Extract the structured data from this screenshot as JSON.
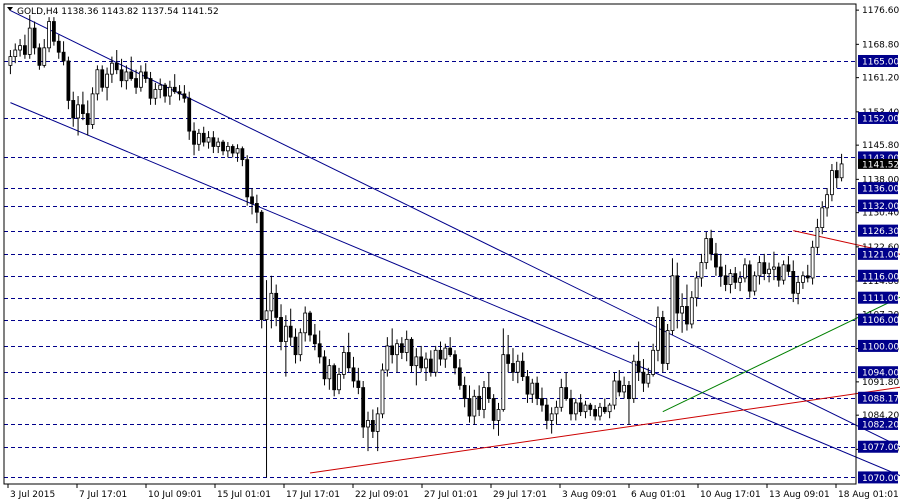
{
  "chart_data": {
    "type": "candlestick",
    "symbol": "GOLD,H4",
    "ohlc_header": {
      "open": "1138.36",
      "high": "1143.82",
      "low": "1137.54",
      "close": "1141.52"
    },
    "title": "GOLD,H4  1138.36 1143.82 1137.54 1141.52",
    "current_price_label": "1141.52",
    "ylim": [
      1068.5,
      1178
    ],
    "y_ticks": [
      "1176.60",
      "1168.80",
      "1161.20",
      "1153.40",
      "1145.80",
      "1138.00",
      "1130.40",
      "1122.60",
      "1114.80",
      "1107.20",
      "1099.40",
      "1091.80",
      "1084.20",
      "1076.40"
    ],
    "x_labels": [
      "3 Jul 2015",
      "7 Jul 17:01",
      "10 Jul 09:01",
      "15 Jul 01:01",
      "17 Jul 17:01",
      "22 Jul 09:01",
      "27 Jul 01:01",
      "29 Jul 17:01",
      "3 Aug 09:01",
      "6 Aug 01:01",
      "10 Aug 17:01",
      "13 Aug 09:01",
      "18 Aug 01:01"
    ],
    "horizontal_levels": [
      "1165.00",
      "1152.00",
      "1143.00",
      "1136.00",
      "1132.00",
      "1126.30",
      "1121.00",
      "1116.00",
      "1111.00",
      "1106.00",
      "1100.00",
      "1094.00",
      "1088.17",
      "1082.20",
      "1077.00",
      "1070.00"
    ],
    "trendlines": [
      {
        "color": "#00008b",
        "from": [
          0,
          1176.5
        ],
        "to": [
          198,
          1069.5
        ]
      },
      {
        "color": "#00008b",
        "from": [
          0,
          1155.5
        ],
        "to": [
          198,
          1064.0
        ]
      },
      {
        "color": "#cc0000",
        "from": [
          62,
          1071.0
        ],
        "to": [
          198,
          1092.8
        ]
      },
      {
        "color": "#cc0000",
        "from": [
          162,
          1126.3
        ],
        "to": [
          198,
          1117.5
        ]
      },
      {
        "color": "#008000",
        "from": [
          135,
          1085.0
        ],
        "to": [
          198,
          1118.5
        ]
      }
    ],
    "candles": [
      {
        "o": 1164.0,
        "h": 1167.5,
        "l": 1162.0,
        "c": 1166.0
      },
      {
        "o": 1166.0,
        "h": 1169.0,
        "l": 1164.5,
        "c": 1167.5
      },
      {
        "o": 1167.5,
        "h": 1170.0,
        "l": 1166.0,
        "c": 1168.5
      },
      {
        "o": 1168.5,
        "h": 1171.0,
        "l": 1165.5,
        "c": 1166.5
      },
      {
        "o": 1166.5,
        "h": 1175.5,
        "l": 1165.5,
        "c": 1172.5
      },
      {
        "o": 1172.5,
        "h": 1174.0,
        "l": 1166.5,
        "c": 1168.0
      },
      {
        "o": 1168.0,
        "h": 1169.0,
        "l": 1163.0,
        "c": 1164.0
      },
      {
        "o": 1164.0,
        "h": 1170.0,
        "l": 1163.5,
        "c": 1168.0
      },
      {
        "o": 1168.0,
        "h": 1175.0,
        "l": 1167.0,
        "c": 1174.0
      },
      {
        "o": 1174.0,
        "h": 1175.0,
        "l": 1168.5,
        "c": 1169.5
      },
      {
        "o": 1169.5,
        "h": 1171.0,
        "l": 1165.5,
        "c": 1167.0
      },
      {
        "o": 1167.0,
        "h": 1169.5,
        "l": 1164.0,
        "c": 1165.0
      },
      {
        "o": 1165.0,
        "h": 1166.0,
        "l": 1154.0,
        "c": 1156.0
      },
      {
        "o": 1156.0,
        "h": 1158.0,
        "l": 1150.0,
        "c": 1152.0
      },
      {
        "o": 1152.0,
        "h": 1157.0,
        "l": 1148.0,
        "c": 1155.0
      },
      {
        "o": 1155.0,
        "h": 1158.0,
        "l": 1151.5,
        "c": 1153.0
      },
      {
        "o": 1153.0,
        "h": 1156.0,
        "l": 1148.0,
        "c": 1150.5
      },
      {
        "o": 1150.5,
        "h": 1159.0,
        "l": 1149.5,
        "c": 1157.5
      },
      {
        "o": 1157.5,
        "h": 1164.0,
        "l": 1156.0,
        "c": 1163.0
      },
      {
        "o": 1163.0,
        "h": 1164.0,
        "l": 1158.0,
        "c": 1159.0
      },
      {
        "o": 1159.0,
        "h": 1163.5,
        "l": 1156.0,
        "c": 1162.0
      },
      {
        "o": 1162.0,
        "h": 1166.0,
        "l": 1160.0,
        "c": 1164.5
      },
      {
        "o": 1164.5,
        "h": 1167.5,
        "l": 1162.0,
        "c": 1163.0
      },
      {
        "o": 1163.0,
        "h": 1165.5,
        "l": 1159.0,
        "c": 1160.5
      },
      {
        "o": 1160.5,
        "h": 1164.0,
        "l": 1158.5,
        "c": 1162.5
      },
      {
        "o": 1162.5,
        "h": 1166.0,
        "l": 1160.5,
        "c": 1161.0
      },
      {
        "o": 1161.0,
        "h": 1163.0,
        "l": 1157.5,
        "c": 1159.0
      },
      {
        "o": 1159.0,
        "h": 1164.0,
        "l": 1158.0,
        "c": 1162.5
      },
      {
        "o": 1162.5,
        "h": 1164.5,
        "l": 1160.0,
        "c": 1161.0
      },
      {
        "o": 1161.0,
        "h": 1162.5,
        "l": 1155.0,
        "c": 1156.5
      },
      {
        "o": 1156.5,
        "h": 1160.0,
        "l": 1155.0,
        "c": 1158.5
      },
      {
        "o": 1158.5,
        "h": 1161.0,
        "l": 1156.5,
        "c": 1159.5
      },
      {
        "o": 1159.5,
        "h": 1160.0,
        "l": 1155.5,
        "c": 1157.0
      },
      {
        "o": 1157.0,
        "h": 1160.5,
        "l": 1155.0,
        "c": 1159.0
      },
      {
        "o": 1159.0,
        "h": 1162.0,
        "l": 1157.5,
        "c": 1158.0
      },
      {
        "o": 1158.0,
        "h": 1159.5,
        "l": 1156.0,
        "c": 1157.5
      },
      {
        "o": 1157.5,
        "h": 1159.5,
        "l": 1155.5,
        "c": 1156.5
      },
      {
        "o": 1156.5,
        "h": 1158.0,
        "l": 1147.0,
        "c": 1149.0
      },
      {
        "o": 1149.0,
        "h": 1151.0,
        "l": 1143.5,
        "c": 1146.0
      },
      {
        "o": 1146.0,
        "h": 1149.5,
        "l": 1144.5,
        "c": 1148.5
      },
      {
        "o": 1148.5,
        "h": 1150.0,
        "l": 1145.5,
        "c": 1146.5
      },
      {
        "o": 1146.5,
        "h": 1149.0,
        "l": 1145.0,
        "c": 1147.5
      },
      {
        "o": 1147.5,
        "h": 1149.0,
        "l": 1144.0,
        "c": 1145.5
      },
      {
        "o": 1145.5,
        "h": 1147.5,
        "l": 1144.0,
        "c": 1146.5
      },
      {
        "o": 1146.5,
        "h": 1147.0,
        "l": 1143.5,
        "c": 1144.5
      },
      {
        "o": 1144.5,
        "h": 1146.5,
        "l": 1143.0,
        "c": 1145.5
      },
      {
        "o": 1145.5,
        "h": 1146.0,
        "l": 1143.0,
        "c": 1144.0
      },
      {
        "o": 1144.0,
        "h": 1146.0,
        "l": 1142.0,
        "c": 1145.0
      },
      {
        "o": 1145.0,
        "h": 1145.5,
        "l": 1141.0,
        "c": 1142.5
      },
      {
        "o": 1142.5,
        "h": 1143.5,
        "l": 1132.0,
        "c": 1134.0
      },
      {
        "o": 1134.0,
        "h": 1136.0,
        "l": 1130.0,
        "c": 1132.5
      },
      {
        "o": 1132.5,
        "h": 1134.5,
        "l": 1128.0,
        "c": 1130.5
      },
      {
        "o": 1130.5,
        "h": 1131.0,
        "l": 1104.0,
        "c": 1106.0
      },
      {
        "o": 1106.0,
        "h": 1115.0,
        "l": 1070.0,
        "c": 1108.0
      },
      {
        "o": 1108.0,
        "h": 1116.0,
        "l": 1104.0,
        "c": 1112.0
      },
      {
        "o": 1112.0,
        "h": 1114.0,
        "l": 1104.5,
        "c": 1106.5
      },
      {
        "o": 1106.5,
        "h": 1109.5,
        "l": 1099.0,
        "c": 1101.0
      },
      {
        "o": 1101.0,
        "h": 1107.0,
        "l": 1093.0,
        "c": 1104.5
      },
      {
        "o": 1104.5,
        "h": 1108.5,
        "l": 1100.0,
        "c": 1102.0
      },
      {
        "o": 1102.0,
        "h": 1104.0,
        "l": 1096.0,
        "c": 1098.0
      },
      {
        "o": 1098.0,
        "h": 1104.0,
        "l": 1096.5,
        "c": 1103.0
      },
      {
        "o": 1103.0,
        "h": 1109.0,
        "l": 1101.0,
        "c": 1107.5
      },
      {
        "o": 1107.5,
        "h": 1108.0,
        "l": 1101.0,
        "c": 1102.5
      },
      {
        "o": 1102.5,
        "h": 1105.0,
        "l": 1099.0,
        "c": 1100.5
      },
      {
        "o": 1100.5,
        "h": 1103.5,
        "l": 1096.0,
        "c": 1097.5
      },
      {
        "o": 1097.5,
        "h": 1099.0,
        "l": 1091.0,
        "c": 1092.5
      },
      {
        "o": 1092.5,
        "h": 1097.0,
        "l": 1090.0,
        "c": 1095.5
      },
      {
        "o": 1095.5,
        "h": 1096.0,
        "l": 1088.5,
        "c": 1090.0
      },
      {
        "o": 1090.0,
        "h": 1095.0,
        "l": 1089.0,
        "c": 1093.5
      },
      {
        "o": 1093.5,
        "h": 1100.0,
        "l": 1092.5,
        "c": 1098.5
      },
      {
        "o": 1098.5,
        "h": 1103.0,
        "l": 1094.0,
        "c": 1095.0
      },
      {
        "o": 1095.0,
        "h": 1097.5,
        "l": 1090.5,
        "c": 1092.0
      },
      {
        "o": 1092.0,
        "h": 1095.0,
        "l": 1089.0,
        "c": 1090.5
      },
      {
        "o": 1090.5,
        "h": 1092.0,
        "l": 1079.0,
        "c": 1081.5
      },
      {
        "o": 1081.5,
        "h": 1085.0,
        "l": 1076.0,
        "c": 1083.0
      },
      {
        "o": 1083.0,
        "h": 1085.5,
        "l": 1079.0,
        "c": 1080.5
      },
      {
        "o": 1080.5,
        "h": 1086.0,
        "l": 1076.0,
        "c": 1084.5
      },
      {
        "o": 1084.5,
        "h": 1096.0,
        "l": 1083.5,
        "c": 1094.5
      },
      {
        "o": 1094.5,
        "h": 1102.0,
        "l": 1093.0,
        "c": 1100.0
      },
      {
        "o": 1100.0,
        "h": 1104.0,
        "l": 1096.0,
        "c": 1098.0
      },
      {
        "o": 1098.0,
        "h": 1101.5,
        "l": 1094.0,
        "c": 1100.5
      },
      {
        "o": 1100.5,
        "h": 1102.0,
        "l": 1097.0,
        "c": 1098.5
      },
      {
        "o": 1098.5,
        "h": 1103.5,
        "l": 1096.5,
        "c": 1101.5
      },
      {
        "o": 1101.5,
        "h": 1102.0,
        "l": 1094.0,
        "c": 1095.5
      },
      {
        "o": 1095.5,
        "h": 1099.5,
        "l": 1091.0,
        "c": 1097.5
      },
      {
        "o": 1097.5,
        "h": 1100.0,
        "l": 1094.0,
        "c": 1095.0
      },
      {
        "o": 1095.0,
        "h": 1098.5,
        "l": 1092.0,
        "c": 1097.0
      },
      {
        "o": 1097.0,
        "h": 1099.0,
        "l": 1093.0,
        "c": 1094.0
      },
      {
        "o": 1094.0,
        "h": 1100.0,
        "l": 1093.0,
        "c": 1099.0
      },
      {
        "o": 1099.0,
        "h": 1101.0,
        "l": 1095.5,
        "c": 1097.0
      },
      {
        "o": 1097.0,
        "h": 1100.5,
        "l": 1095.0,
        "c": 1099.5
      },
      {
        "o": 1099.5,
        "h": 1102.0,
        "l": 1097.5,
        "c": 1098.0
      },
      {
        "o": 1098.0,
        "h": 1099.0,
        "l": 1093.5,
        "c": 1095.0
      },
      {
        "o": 1095.0,
        "h": 1097.0,
        "l": 1090.0,
        "c": 1091.0
      },
      {
        "o": 1091.0,
        "h": 1093.0,
        "l": 1086.0,
        "c": 1088.0
      },
      {
        "o": 1088.0,
        "h": 1091.0,
        "l": 1082.5,
        "c": 1084.0
      },
      {
        "o": 1084.0,
        "h": 1090.0,
        "l": 1082.0,
        "c": 1088.5
      },
      {
        "o": 1088.5,
        "h": 1091.0,
        "l": 1084.0,
        "c": 1085.5
      },
      {
        "o": 1085.5,
        "h": 1092.0,
        "l": 1083.5,
        "c": 1090.5
      },
      {
        "o": 1090.5,
        "h": 1094.0,
        "l": 1087.0,
        "c": 1088.0
      },
      {
        "o": 1088.0,
        "h": 1089.0,
        "l": 1081.0,
        "c": 1083.0
      },
      {
        "o": 1083.0,
        "h": 1087.0,
        "l": 1079.5,
        "c": 1085.5
      },
      {
        "o": 1085.5,
        "h": 1104.0,
        "l": 1085.0,
        "c": 1098.0
      },
      {
        "o": 1098.0,
        "h": 1102.5,
        "l": 1094.0,
        "c": 1096.0
      },
      {
        "o": 1096.0,
        "h": 1099.5,
        "l": 1092.0,
        "c": 1094.0
      },
      {
        "o": 1094.0,
        "h": 1098.0,
        "l": 1091.5,
        "c": 1096.5
      },
      {
        "o": 1096.5,
        "h": 1098.5,
        "l": 1092.0,
        "c": 1093.0
      },
      {
        "o": 1093.0,
        "h": 1094.5,
        "l": 1087.0,
        "c": 1089.0
      },
      {
        "o": 1089.0,
        "h": 1092.5,
        "l": 1087.0,
        "c": 1091.5
      },
      {
        "o": 1091.5,
        "h": 1093.0,
        "l": 1086.5,
        "c": 1088.0
      },
      {
        "o": 1088.0,
        "h": 1090.5,
        "l": 1085.0,
        "c": 1086.5
      },
      {
        "o": 1086.5,
        "h": 1088.0,
        "l": 1081.0,
        "c": 1083.0
      },
      {
        "o": 1083.0,
        "h": 1086.0,
        "l": 1080.0,
        "c": 1084.5
      },
      {
        "o": 1084.5,
        "h": 1087.5,
        "l": 1082.0,
        "c": 1086.0
      },
      {
        "o": 1086.0,
        "h": 1092.5,
        "l": 1085.0,
        "c": 1090.5
      },
      {
        "o": 1090.5,
        "h": 1094.0,
        "l": 1087.5,
        "c": 1088.0
      },
      {
        "o": 1088.0,
        "h": 1090.0,
        "l": 1083.0,
        "c": 1084.5
      },
      {
        "o": 1084.5,
        "h": 1088.0,
        "l": 1083.0,
        "c": 1087.0
      },
      {
        "o": 1087.0,
        "h": 1089.0,
        "l": 1084.0,
        "c": 1085.0
      },
      {
        "o": 1085.0,
        "h": 1087.5,
        "l": 1083.5,
        "c": 1086.5
      },
      {
        "o": 1086.5,
        "h": 1087.0,
        "l": 1084.0,
        "c": 1085.5
      },
      {
        "o": 1085.5,
        "h": 1086.5,
        "l": 1083.0,
        "c": 1084.0
      },
      {
        "o": 1084.0,
        "h": 1087.0,
        "l": 1083.0,
        "c": 1086.0
      },
      {
        "o": 1086.0,
        "h": 1088.0,
        "l": 1084.5,
        "c": 1085.0
      },
      {
        "o": 1085.0,
        "h": 1087.0,
        "l": 1083.5,
        "c": 1086.5
      },
      {
        "o": 1086.5,
        "h": 1094.0,
        "l": 1085.5,
        "c": 1092.0
      },
      {
        "o": 1092.0,
        "h": 1094.5,
        "l": 1088.5,
        "c": 1089.5
      },
      {
        "o": 1089.5,
        "h": 1093.0,
        "l": 1088.0,
        "c": 1091.0
      },
      {
        "o": 1091.0,
        "h": 1092.0,
        "l": 1082.0,
        "c": 1088.0
      },
      {
        "o": 1088.0,
        "h": 1098.0,
        "l": 1087.0,
        "c": 1096.5
      },
      {
        "o": 1096.5,
        "h": 1101.0,
        "l": 1092.0,
        "c": 1094.0
      },
      {
        "o": 1094.0,
        "h": 1097.0,
        "l": 1089.5,
        "c": 1091.5
      },
      {
        "o": 1091.5,
        "h": 1095.0,
        "l": 1090.5,
        "c": 1093.5
      },
      {
        "o": 1093.5,
        "h": 1100.5,
        "l": 1093.0,
        "c": 1099.0
      },
      {
        "o": 1099.0,
        "h": 1109.0,
        "l": 1096.5,
        "c": 1106.5
      },
      {
        "o": 1106.5,
        "h": 1108.0,
        "l": 1094.0,
        "c": 1096.0
      },
      {
        "o": 1096.0,
        "h": 1105.0,
        "l": 1094.5,
        "c": 1103.5
      },
      {
        "o": 1103.5,
        "h": 1120.0,
        "l": 1102.5,
        "c": 1116.0
      },
      {
        "o": 1116.0,
        "h": 1119.0,
        "l": 1104.0,
        "c": 1107.5
      },
      {
        "o": 1107.5,
        "h": 1112.0,
        "l": 1103.0,
        "c": 1109.0
      },
      {
        "o": 1109.0,
        "h": 1114.0,
        "l": 1103.5,
        "c": 1105.0
      },
      {
        "o": 1105.0,
        "h": 1112.5,
        "l": 1104.0,
        "c": 1111.0
      },
      {
        "o": 1111.0,
        "h": 1117.0,
        "l": 1109.0,
        "c": 1115.5
      },
      {
        "o": 1115.5,
        "h": 1121.0,
        "l": 1113.5,
        "c": 1119.0
      },
      {
        "o": 1119.0,
        "h": 1126.0,
        "l": 1117.5,
        "c": 1124.5
      },
      {
        "o": 1124.5,
        "h": 1126.5,
        "l": 1119.5,
        "c": 1121.0
      },
      {
        "o": 1121.0,
        "h": 1123.5,
        "l": 1116.0,
        "c": 1118.0
      },
      {
        "o": 1118.0,
        "h": 1121.0,
        "l": 1113.5,
        "c": 1116.0
      },
      {
        "o": 1116.0,
        "h": 1118.5,
        "l": 1112.5,
        "c": 1114.0
      },
      {
        "o": 1114.0,
        "h": 1117.5,
        "l": 1112.0,
        "c": 1116.5
      },
      {
        "o": 1116.5,
        "h": 1118.0,
        "l": 1113.0,
        "c": 1114.5
      },
      {
        "o": 1114.5,
        "h": 1117.0,
        "l": 1112.5,
        "c": 1115.5
      },
      {
        "o": 1115.5,
        "h": 1120.0,
        "l": 1114.5,
        "c": 1118.5
      },
      {
        "o": 1118.5,
        "h": 1119.5,
        "l": 1111.0,
        "c": 1112.5
      },
      {
        "o": 1112.5,
        "h": 1117.0,
        "l": 1111.5,
        "c": 1116.0
      },
      {
        "o": 1116.0,
        "h": 1120.5,
        "l": 1114.0,
        "c": 1119.0
      },
      {
        "o": 1119.0,
        "h": 1121.0,
        "l": 1115.0,
        "c": 1116.5
      },
      {
        "o": 1116.5,
        "h": 1119.0,
        "l": 1114.5,
        "c": 1117.5
      },
      {
        "o": 1117.5,
        "h": 1121.5,
        "l": 1115.0,
        "c": 1118.0
      },
      {
        "o": 1118.0,
        "h": 1119.0,
        "l": 1113.5,
        "c": 1115.0
      },
      {
        "o": 1115.0,
        "h": 1119.5,
        "l": 1114.0,
        "c": 1118.5
      },
      {
        "o": 1118.5,
        "h": 1120.5,
        "l": 1116.0,
        "c": 1117.0
      },
      {
        "o": 1117.0,
        "h": 1119.5,
        "l": 1110.0,
        "c": 1112.0
      },
      {
        "o": 1112.0,
        "h": 1116.0,
        "l": 1109.5,
        "c": 1114.5
      },
      {
        "o": 1114.5,
        "h": 1117.0,
        "l": 1113.0,
        "c": 1116.0
      },
      {
        "o": 1116.0,
        "h": 1118.5,
        "l": 1114.5,
        "c": 1115.5
      },
      {
        "o": 1115.5,
        "h": 1124.0,
        "l": 1114.0,
        "c": 1122.5
      },
      {
        "o": 1122.5,
        "h": 1129.0,
        "l": 1121.0,
        "c": 1127.0
      },
      {
        "o": 1127.0,
        "h": 1133.0,
        "l": 1125.5,
        "c": 1131.5
      },
      {
        "o": 1131.5,
        "h": 1136.0,
        "l": 1129.5,
        "c": 1134.5
      },
      {
        "o": 1134.5,
        "h": 1141.5,
        "l": 1133.0,
        "c": 1140.0
      },
      {
        "o": 1140.0,
        "h": 1142.0,
        "l": 1136.0,
        "c": 1138.36
      },
      {
        "o": 1138.36,
        "h": 1143.82,
        "l": 1137.54,
        "c": 1141.52
      }
    ],
    "colors": {
      "background": "#ffffff",
      "candle": "#000000",
      "grid_dash": "#00008b",
      "level_label_bg": "#00008b",
      "channel": "#00008b",
      "red_line": "#cc0000",
      "green_line": "#008000",
      "price_marker_bg": "#000000"
    }
  }
}
